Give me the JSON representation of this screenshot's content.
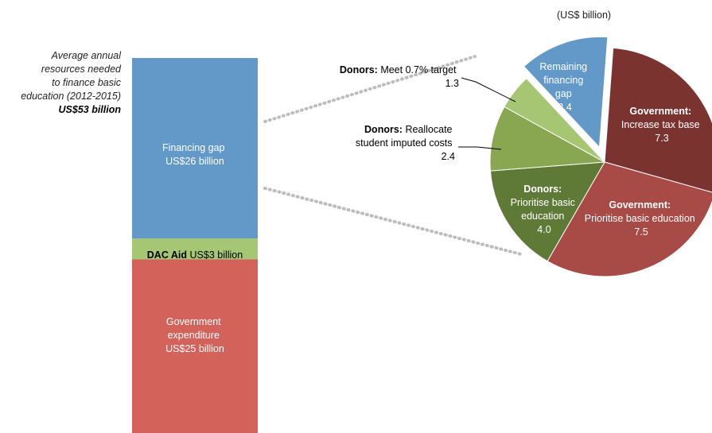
{
  "unit_note": "(US$ billion)",
  "left_annotation": {
    "lines": [
      "Average annual",
      "resources needed",
      "to finance basic",
      "education (2012-2015)"
    ],
    "total": "US$53 billion"
  },
  "colors": {
    "financing_gap": "#6399c9",
    "dac_aid": "#a5c673",
    "government_expenditure": "#d2625a",
    "remaining_gap": "#6399c9",
    "gov_tax_base": "#7a332f",
    "gov_prioritise": "#a84a45",
    "donors_prioritise": "#5f7936",
    "donors_reallocate": "#88a750",
    "donors_target": "#a6c673",
    "connector": "#bdbdbd"
  },
  "chart_data": [
    {
      "type": "bar",
      "stacked": true,
      "title": "",
      "segments": [
        {
          "key": "government_expenditure",
          "name": "Government expenditure",
          "line1": "Government",
          "line2": "expenditure",
          "value_label": "US$25 billion",
          "value": 25
        },
        {
          "key": "dac_aid",
          "name": "DAC Aid",
          "value_label": "US$3 billion",
          "value": 3
        },
        {
          "key": "financing_gap",
          "name": "Financing gap",
          "value_label": "US$26 billion",
          "value": 26
        }
      ],
      "ylim": [
        0,
        54
      ]
    },
    {
      "type": "pie",
      "slices": [
        {
          "key": "remaining_gap",
          "title1": "Remaining",
          "title2": "financing",
          "title3": "gap",
          "value": 3.4,
          "value_label": "3.4",
          "exploded": true
        },
        {
          "key": "gov_tax_base",
          "title": "Government:",
          "desc": "Increase tax base",
          "value": 7.3,
          "value_label": "7.3"
        },
        {
          "key": "gov_prioritise",
          "title": "Government:",
          "desc": "Prioritise basic education",
          "value": 7.5,
          "value_label": "7.5"
        },
        {
          "key": "donors_prioritise",
          "title": "Donors:",
          "desc1": "Prioritise basic",
          "desc2": "education",
          "value": 4.0,
          "value_label": "4.0"
        },
        {
          "key": "donors_reallocate",
          "title": "Donors:",
          "desc1": "Reallocate",
          "desc2": "student imputed costs",
          "value": 2.4,
          "value_label": "2.4"
        },
        {
          "key": "donors_target",
          "title": "Donors:",
          "desc": "Meet 0.7% target",
          "value": 1.3,
          "value_label": "1.3"
        }
      ]
    }
  ]
}
